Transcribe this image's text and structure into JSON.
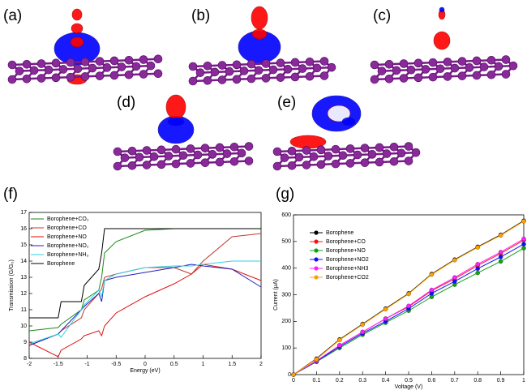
{
  "panel_labels": [
    "(a)",
    "(b)",
    "(c)",
    "(d)",
    "(e)"
  ],
  "chart_data": [
    {
      "type": "line",
      "label": "(f)",
      "x_label": "Energy (eV)",
      "y_label": "Transmission (G/G₀)",
      "x": [
        -2,
        -1.5,
        -1.45,
        -1.1,
        -1.05,
        -0.8,
        -0.75,
        -0.7,
        -0.5,
        0,
        0.5,
        0.8,
        1,
        1.5,
        2
      ],
      "series": [
        {
          "name": "Borophene+CO₂",
          "color": "#1a8a1a",
          "values": [
            9.7,
            9.9,
            10.1,
            11,
            11.6,
            12.2,
            13,
            14.5,
            15.2,
            15.9,
            16,
            16,
            16,
            16,
            16
          ]
        },
        {
          "name": "Borophene+CO",
          "color": "#c0392b",
          "values": [
            8.8,
            9.5,
            9.7,
            10.5,
            11,
            12,
            12.3,
            13,
            13.2,
            13.6,
            13.6,
            13.2,
            14,
            15.5,
            15.7
          ]
        },
        {
          "name": "Borophene+NO",
          "color": "#e01010",
          "values": [
            9,
            8.1,
            8.5,
            9.2,
            9.4,
            9.7,
            9.4,
            10,
            10.8,
            11.8,
            12.6,
            13.2,
            13.8,
            13.5,
            12.8
          ]
        },
        {
          "name": "Borophene+NO₂",
          "color": "#2020c0",
          "values": [
            8.8,
            9.5,
            9.7,
            11,
            11.2,
            12,
            11.5,
            12.8,
            13,
            13.3,
            13.6,
            13.8,
            13.7,
            13.5,
            12.4
          ]
        },
        {
          "name": "Borophene+NH₃",
          "color": "#30d0e0",
          "values": [
            8.9,
            9.5,
            9.3,
            11,
            11.3,
            12.2,
            11.8,
            12.8,
            13.2,
            13.6,
            13.7,
            13.7,
            13.8,
            14,
            14
          ]
        },
        {
          "name": "Borophene",
          "color": "#000000",
          "values": [
            10.5,
            10.5,
            11.5,
            11.5,
            12.5,
            13.5,
            14.5,
            16,
            16,
            16,
            16,
            16,
            16,
            16,
            16
          ]
        }
      ],
      "xlim": [
        -2,
        2
      ],
      "xticks": [
        -2,
        -1.5,
        -1,
        -0.5,
        0,
        0.5,
        1,
        1.5,
        2
      ],
      "ylim": [
        8,
        17
      ],
      "yticks": [
        8,
        9,
        10,
        11,
        12,
        13,
        14,
        15,
        16,
        17
      ],
      "markers": false
    },
    {
      "type": "line",
      "label": "(g)",
      "x_label": "Voltage (V)",
      "y_label": "Current (μA)",
      "x": [
        0,
        0.1,
        0.2,
        0.3,
        0.4,
        0.5,
        0.6,
        0.7,
        0.8,
        0.9,
        1
      ],
      "series": [
        {
          "name": "Borophene",
          "color": "#000000",
          "values": [
            0,
            60,
            132,
            190,
            248,
            305,
            378,
            432,
            480,
            525,
            578
          ]
        },
        {
          "name": "Borophene+CO",
          "color": "#ff1010",
          "values": [
            0,
            50,
            110,
            160,
            210,
            255,
            315,
            360,
            410,
            455,
            505
          ]
        },
        {
          "name": "Borophene+NO",
          "color": "#10a010",
          "values": [
            0,
            48,
            100,
            150,
            195,
            240,
            292,
            338,
            382,
            425,
            475
          ]
        },
        {
          "name": "Borophene+NO2",
          "color": "#1010ff",
          "values": [
            0,
            50,
            105,
            155,
            200,
            248,
            305,
            350,
            398,
            442,
            490
          ]
        },
        {
          "name": "Borophene+NH3",
          "color": "#ff20ff",
          "values": [
            0,
            52,
            110,
            160,
            210,
            258,
            318,
            365,
            415,
            460,
            510
          ]
        },
        {
          "name": "Borophene+CO2",
          "color": "#ffa000",
          "values": [
            0,
            58,
            130,
            188,
            246,
            303,
            376,
            430,
            478,
            523,
            576
          ]
        }
      ],
      "xlim": [
        0,
        1
      ],
      "xticks": [
        0,
        0.1,
        0.2,
        0.3,
        0.4,
        0.5,
        0.6,
        0.7,
        0.8,
        0.9,
        1
      ],
      "ylim": [
        0,
        600
      ],
      "yticks": [
        0,
        100,
        200,
        300,
        400,
        500,
        600
      ],
      "markers": true
    }
  ]
}
